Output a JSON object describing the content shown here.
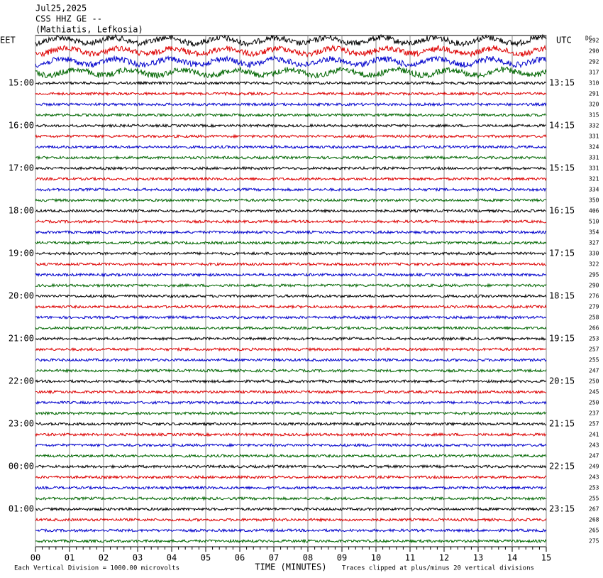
{
  "header": {
    "date": "Jul25,2025",
    "station": "CSS HHZ GE --",
    "location": "(Mathiatis, Lefkosia)"
  },
  "left_axis": {
    "title": "EET",
    "labels": [
      "15:00",
      "16:00",
      "17:00",
      "18:00",
      "19:00",
      "20:00",
      "21:00",
      "22:00",
      "23:00",
      "00:00",
      "01:00"
    ]
  },
  "right_axis": {
    "title": "UTC",
    "labels": [
      "13:15",
      "14:15",
      "15:15",
      "16:15",
      "17:15",
      "18:15",
      "19:15",
      "20:15",
      "21:15",
      "22:15",
      "23:15"
    ]
  },
  "dc": {
    "title": "DC",
    "values": [
      292,
      290,
      292,
      317,
      310,
      291,
      320,
      315,
      332,
      331,
      324,
      331,
      331,
      321,
      334,
      350,
      406,
      510,
      354,
      327,
      330,
      322,
      295,
      290,
      276,
      279,
      258,
      266,
      253,
      257,
      255,
      247,
      250,
      245,
      250,
      237,
      257,
      241,
      243,
      247,
      249,
      243,
      253,
      255,
      267,
      268,
      265,
      275
    ]
  },
  "x_axis": {
    "title": "TIME (MINUTES)",
    "labels": [
      "00",
      "01",
      "02",
      "03",
      "04",
      "05",
      "06",
      "07",
      "08",
      "09",
      "10",
      "11",
      "12",
      "13",
      "14",
      "15"
    ]
  },
  "footer": {
    "scale": "Each Vertical Division = 1000.00 microvolts",
    "clip": "Traces clipped at plus/minus 20 vertical divisions"
  }
}
